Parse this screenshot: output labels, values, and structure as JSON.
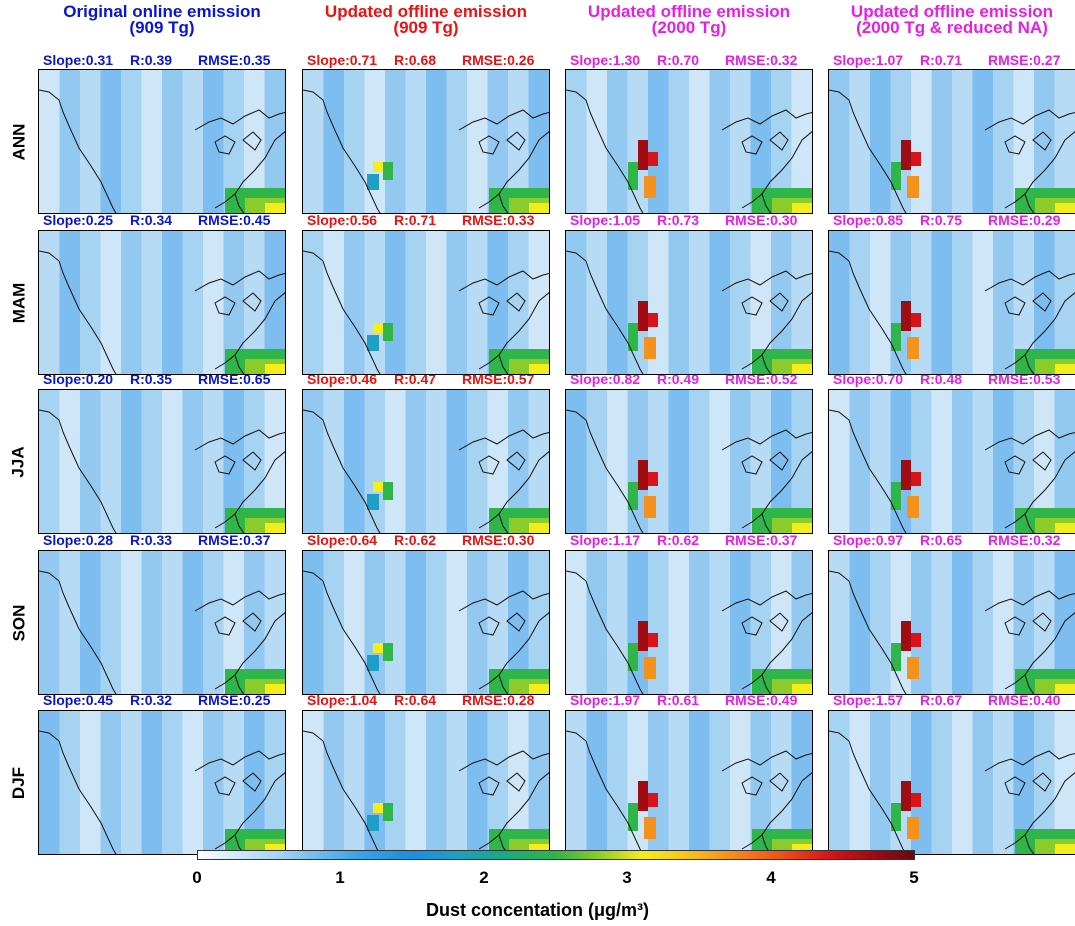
{
  "columns": [
    {
      "title_line1": "Original online emission",
      "title_line2": "(909 Tg)",
      "color": "#0a14d6"
    },
    {
      "title_line1": "Updated offline emission",
      "title_line2": "(909 Tg)",
      "color": "#ee1111"
    },
    {
      "title_line1": "Updated offline emission",
      "title_line2": "(2000 Tg)",
      "color": "#e81ee8"
    },
    {
      "title_line1": "Updated offline emission",
      "title_line2": "(2000 Tg & reduced NA)",
      "color": "#e81ee8"
    }
  ],
  "rows": [
    "ANN",
    "MAM",
    "JJA",
    "SON",
    "DJF"
  ],
  "stats": [
    [
      [
        "Slope:0.31",
        "R:0.39",
        "RMSE:0.35"
      ],
      [
        "Slope:0.71",
        "R:0.68",
        "RMSE:0.26"
      ],
      [
        "Slope:1.30",
        "R:0.70",
        "RMSE:0.32"
      ],
      [
        "Slope:1.07",
        "R:0.71",
        "RMSE:0.27"
      ]
    ],
    [
      [
        "Slope:0.25",
        "R:0.34",
        "RMSE:0.45"
      ],
      [
        "Slope:0.56",
        "R:0.71",
        "RMSE:0.33"
      ],
      [
        "Slope:1.05",
        "R:0.73",
        "RMSE:0.30"
      ],
      [
        "Slope:0.85",
        "R:0.75",
        "RMSE:0.29"
      ]
    ],
    [
      [
        "Slope:0.20",
        "R:0.35",
        "RMSE:0.65"
      ],
      [
        "Slope:0.46",
        "R:0.47",
        "RMSE:0.57"
      ],
      [
        "Slope:0.82",
        "R:0.49",
        "RMSE:0.52"
      ],
      [
        "Slope:0.70",
        "R:0.48",
        "RMSE:0.53"
      ]
    ],
    [
      [
        "Slope:0.28",
        "R:0.33",
        "RMSE:0.37"
      ],
      [
        "Slope:0.64",
        "R:0.62",
        "RMSE:0.30"
      ],
      [
        "Slope:1.17",
        "R:0.62",
        "RMSE:0.37"
      ],
      [
        "Slope:0.97",
        "R:0.65",
        "RMSE:0.32"
      ]
    ],
    [
      [
        "Slope:0.45",
        "R:0.32",
        "RMSE:0.25"
      ],
      [
        "Slope:1.04",
        "R:0.64",
        "RMSE:0.28"
      ],
      [
        "Slope:1.97",
        "R:0.61",
        "RMSE:0.49"
      ],
      [
        "Slope:1.57",
        "R:0.67",
        "RMSE:0.40"
      ]
    ]
  ],
  "colorbar": {
    "ticks": [
      "0",
      "1",
      "2",
      "3",
      "4",
      "5"
    ],
    "label": "Dust concentation (μg/m³)"
  },
  "chart_data": {
    "type": "heatmap",
    "rows": [
      "ANN",
      "MAM",
      "JJA",
      "SON",
      "DJF"
    ],
    "columns": [
      "Original online emission (909 Tg)",
      "Updated offline emission (909 Tg)",
      "Updated offline emission (2000 Tg)",
      "Updated offline emission (2000 Tg & reduced NA)"
    ],
    "colorbar_range": [
      0,
      5
    ],
    "colorbar_label": "Dust concentation (μg/m³)",
    "slope": [
      [
        0.31,
        0.71,
        1.3,
        1.07
      ],
      [
        0.25,
        0.56,
        1.05,
        0.85
      ],
      [
        0.2,
        0.46,
        0.82,
        0.7
      ],
      [
        0.28,
        0.64,
        1.17,
        0.97
      ],
      [
        0.45,
        1.04,
        1.97,
        1.57
      ]
    ],
    "r": [
      [
        0.39,
        0.68,
        0.7,
        0.71
      ],
      [
        0.34,
        0.71,
        0.73,
        0.75
      ],
      [
        0.35,
        0.47,
        0.49,
        0.48
      ],
      [
        0.33,
        0.62,
        0.62,
        0.65
      ],
      [
        0.32,
        0.64,
        0.61,
        0.67
      ]
    ],
    "rmse": [
      [
        0.35,
        0.26,
        0.32,
        0.27
      ],
      [
        0.45,
        0.33,
        0.3,
        0.29
      ],
      [
        0.65,
        0.57,
        0.52,
        0.53
      ],
      [
        0.37,
        0.3,
        0.37,
        0.32
      ],
      [
        0.25,
        0.28,
        0.49,
        0.4
      ]
    ]
  }
}
